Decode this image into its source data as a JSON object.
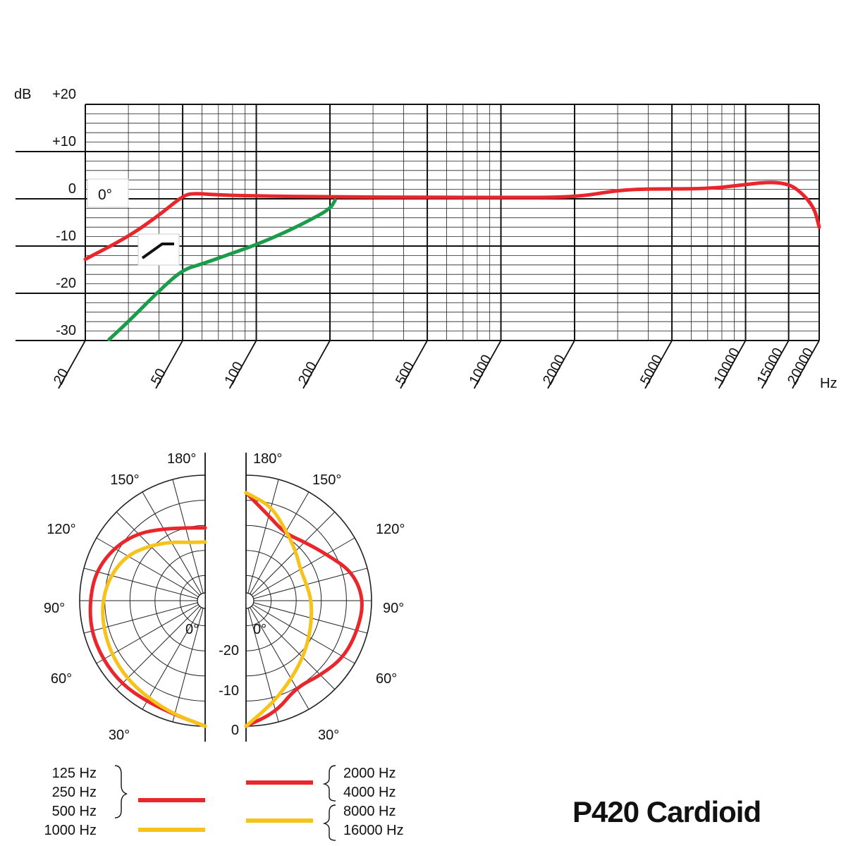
{
  "chart_data": [
    {
      "type": "line",
      "title": "",
      "xlabel": "Hz",
      "ylabel": "dB",
      "xscale": "log",
      "xlim": [
        20,
        20000
      ],
      "ylim": [
        -30,
        20
      ],
      "x_tick_labels": [
        "20",
        "50",
        "100",
        "200",
        "500",
        "1000",
        "2000",
        "5000",
        "10000",
        "15000",
        "20000"
      ],
      "x_ticks": [
        20,
        50,
        100,
        200,
        500,
        1000,
        2000,
        5000,
        10000,
        15000,
        20000
      ],
      "y_tick_labels": [
        "+20",
        "+10",
        "0",
        "-10",
        "-20",
        "-30"
      ],
      "y_ticks": [
        20,
        10,
        0,
        -10,
        -20,
        -30
      ],
      "grid": true,
      "annotations": [
        "0°"
      ],
      "series": [
        {
          "color": "#e8262b",
          "points": [
            [
              20,
              -12.8
            ],
            [
              30,
              -8
            ],
            [
              40,
              -3.5
            ],
            [
              50,
              0.6
            ],
            [
              55,
              1.2
            ],
            [
              70,
              0.8
            ],
            [
              100,
              0.6
            ],
            [
              200,
              0.4
            ],
            [
              500,
              0.3
            ],
            [
              1000,
              0.3
            ],
            [
              2000,
              0.3
            ],
            [
              3000,
              1.8
            ],
            [
              4000,
              2.1
            ],
            [
              7000,
              2.1
            ],
            [
              10000,
              3
            ],
            [
              12000,
              3.5
            ],
            [
              14000,
              3.4
            ],
            [
              16000,
              2.5
            ],
            [
              19000,
              -1.5
            ],
            [
              20000,
              -6
            ]
          ]
        },
        {
          "color": "#1a9c4a",
          "points": [
            [
              25,
              -29.8
            ],
            [
              30,
              -26
            ],
            [
              40,
              -19.5
            ],
            [
              50,
              -15
            ],
            [
              60,
              -13.8
            ],
            [
              80,
              -11.5
            ],
            [
              100,
              -9.7
            ],
            [
              130,
              -7.2
            ],
            [
              160,
              -4.9
            ],
            [
              200,
              -2.2
            ],
            [
              210,
              -0.3
            ]
          ]
        }
      ]
    },
    {
      "type": "polar",
      "angle_labels": [
        "0°",
        "30°",
        "60°",
        "90°",
        "120°",
        "150°",
        "180°"
      ],
      "radial_labels": [
        "0",
        "-10",
        "-20"
      ],
      "rlim": [
        -25,
        0
      ],
      "series": [
        {
          "name": "125 Hz / 250 Hz / 500 Hz",
          "side": "left",
          "color": "#e8262b",
          "points": [
            [
              0,
              0
            ],
            [
              15,
              -1.5
            ],
            [
              30,
              -1.8
            ],
            [
              45,
              -1.5
            ],
            [
              60,
              -1.5
            ],
            [
              75,
              -1.5
            ],
            [
              90,
              -2
            ],
            [
              105,
              -2.5
            ],
            [
              120,
              -4
            ],
            [
              135,
              -6
            ],
            [
              150,
              -8.5
            ],
            [
              165,
              -10
            ],
            [
              180,
              -10.5
            ]
          ]
        },
        {
          "name": "1000 Hz",
          "side": "left",
          "color": "#f7c21a",
          "points": [
            [
              0,
              0
            ],
            [
              15,
              -1.5
            ],
            [
              30,
              -2.5
            ],
            [
              45,
              -3
            ],
            [
              60,
              -3.5
            ],
            [
              75,
              -4
            ],
            [
              90,
              -4.5
            ],
            [
              105,
              -5.5
            ],
            [
              120,
              -7
            ],
            [
              135,
              -9.5
            ],
            [
              150,
              -11.5
            ],
            [
              165,
              -13
            ],
            [
              180,
              -13.3
            ]
          ]
        },
        {
          "name": "2000 Hz / 4000 Hz",
          "side": "right",
          "color": "#e8262b",
          "points": [
            [
              0,
              0
            ],
            [
              15,
              -2
            ],
            [
              30,
              -5
            ],
            [
              45,
              -4
            ],
            [
              60,
              -2.5
            ],
            [
              75,
              -2
            ],
            [
              90,
              -1.5
            ],
            [
              105,
              -3
            ],
            [
              120,
              -6.5
            ],
            [
              135,
              -8.5
            ],
            [
              150,
              -9.5
            ],
            [
              165,
              -7.5
            ],
            [
              180,
              -3.5
            ]
          ]
        },
        {
          "name": "8000 Hz / 16000 Hz",
          "side": "right",
          "color": "#f7c21a",
          "points": [
            [
              0,
              0
            ],
            [
              15,
              -4
            ],
            [
              30,
              -7
            ],
            [
              45,
              -9
            ],
            [
              60,
              -10.5
            ],
            [
              75,
              -11.5
            ],
            [
              90,
              -12
            ],
            [
              105,
              -12.5
            ],
            [
              120,
              -12.5
            ],
            [
              135,
              -11
            ],
            [
              150,
              -9
            ],
            [
              165,
              -5.5
            ],
            [
              180,
              -3.5
            ]
          ]
        }
      ]
    }
  ],
  "legend": {
    "left_group": [
      "125 Hz",
      "250 Hz",
      "500 Hz",
      "1000 Hz"
    ],
    "right_group": [
      "2000 Hz",
      "4000 Hz",
      "8000 Hz",
      "16000 Hz"
    ],
    "left_line_colors": [
      "#e8262b",
      "#f7c21a"
    ],
    "right_line_colors": [
      "#e8262b",
      "#f7c21a"
    ]
  },
  "product_title": "P420 Cardioid"
}
